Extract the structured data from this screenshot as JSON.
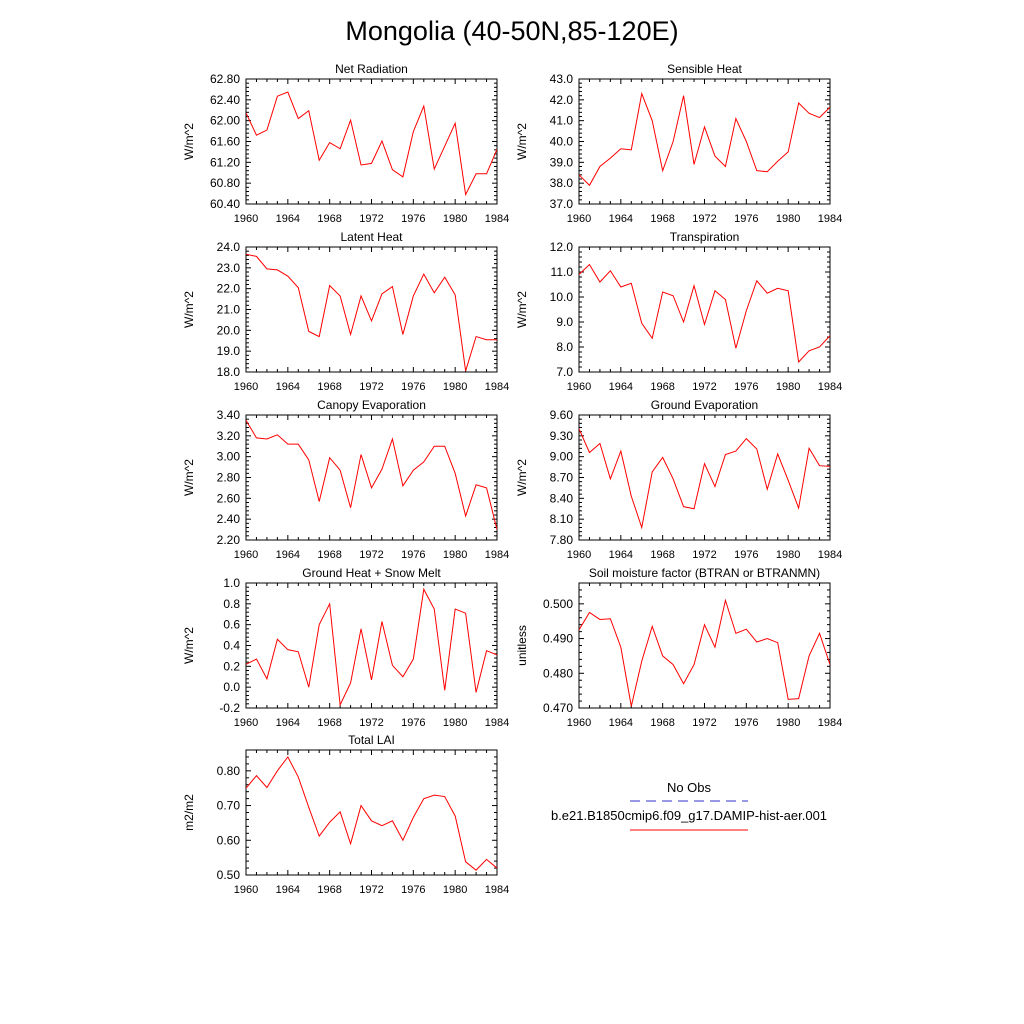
{
  "page": {
    "title": "Mongolia (40-50N,85-120E)"
  },
  "legend": {
    "obs_label": "No Obs",
    "model_label": "b.e21.B1850cmip6.f09_g17.DAMIP-hist-aer.001",
    "obs_color": "#3333cc",
    "model_color": "#ff0000"
  },
  "chart_data": [
    {
      "type": "line",
      "title": "Net Radiation",
      "ylabel": "W/m^2",
      "xlim": [
        1960,
        1984
      ],
      "xticks": [
        "1960",
        "1964",
        "1968",
        "1972",
        "1976",
        "1980",
        "1984"
      ],
      "ylim": [
        60.4,
        62.8
      ],
      "yticks": [
        "60.40",
        "60.80",
        "61.20",
        "61.60",
        "62.00",
        "62.40",
        "62.80"
      ],
      "x": [
        1960,
        1961,
        1962,
        1963,
        1964,
        1965,
        1966,
        1967,
        1968,
        1969,
        1970,
        1971,
        1972,
        1973,
        1974,
        1975,
        1976,
        1977,
        1978,
        1979,
        1980,
        1981,
        1982,
        1983,
        1984
      ],
      "series": [
        {
          "color": "#ff0000",
          "values": [
            62.15,
            61.72,
            61.82,
            62.47,
            62.55,
            62.04,
            62.19,
            61.24,
            61.58,
            61.46,
            62.01,
            61.15,
            61.18,
            61.61,
            61.06,
            60.92,
            61.79,
            62.28,
            61.07,
            61.51,
            61.95,
            60.58,
            60.98,
            60.98,
            61.45
          ]
        }
      ]
    },
    {
      "type": "line",
      "title": "Sensible Heat",
      "ylabel": "W/m^2",
      "xlim": [
        1960,
        1984
      ],
      "xticks": [
        "1960",
        "1964",
        "1968",
        "1972",
        "1976",
        "1980",
        "1984"
      ],
      "ylim": [
        37.0,
        43.0
      ],
      "yticks": [
        "37.0",
        "38.0",
        "39.0",
        "40.0",
        "41.0",
        "42.0",
        "43.0"
      ],
      "x": [
        1960,
        1961,
        1962,
        1963,
        1964,
        1965,
        1966,
        1967,
        1968,
        1969,
        1970,
        1971,
        1972,
        1973,
        1974,
        1975,
        1976,
        1977,
        1978,
        1979,
        1980,
        1981,
        1982,
        1983,
        1984
      ],
      "series": [
        {
          "color": "#ff0000",
          "values": [
            38.4,
            37.9,
            38.8,
            39.2,
            39.65,
            39.6,
            42.3,
            41.0,
            38.6,
            40.0,
            42.2,
            38.9,
            40.7,
            39.3,
            38.8,
            41.1,
            40.0,
            38.6,
            38.55,
            39.05,
            39.5,
            41.85,
            41.35,
            41.15,
            41.65
          ]
        }
      ]
    },
    {
      "type": "line",
      "title": "Latent Heat",
      "ylabel": "W/m^2",
      "xlim": [
        1960,
        1984
      ],
      "xticks": [
        "1960",
        "1964",
        "1968",
        "1972",
        "1976",
        "1980",
        "1984"
      ],
      "ylim": [
        18.0,
        24.0
      ],
      "yticks": [
        "18.0",
        "19.0",
        "20.0",
        "21.0",
        "22.0",
        "23.0",
        "24.0"
      ],
      "x": [
        1960,
        1961,
        1962,
        1963,
        1964,
        1965,
        1966,
        1967,
        1968,
        1969,
        1970,
        1971,
        1972,
        1973,
        1974,
        1975,
        1976,
        1977,
        1978,
        1979,
        1980,
        1981,
        1982,
        1983,
        1984
      ],
      "series": [
        {
          "color": "#ff0000",
          "values": [
            23.65,
            23.55,
            22.95,
            22.9,
            22.6,
            22.05,
            19.95,
            19.7,
            22.15,
            21.65,
            19.8,
            21.65,
            20.45,
            21.75,
            22.1,
            19.8,
            21.65,
            22.7,
            21.8,
            22.55,
            21.7,
            18.05,
            19.7,
            19.55,
            19.55
          ]
        }
      ]
    },
    {
      "type": "line",
      "title": "Transpiration",
      "ylabel": "W/m^2",
      "xlim": [
        1960,
        1984
      ],
      "xticks": [
        "1960",
        "1964",
        "1968",
        "1972",
        "1976",
        "1980",
        "1984"
      ],
      "ylim": [
        7.0,
        12.0
      ],
      "yticks": [
        "7.0",
        "8.0",
        "9.0",
        "10.0",
        "11.0",
        "12.0"
      ],
      "x": [
        1960,
        1961,
        1962,
        1963,
        1964,
        1965,
        1966,
        1967,
        1968,
        1969,
        1970,
        1971,
        1972,
        1973,
        1974,
        1975,
        1976,
        1977,
        1978,
        1979,
        1980,
        1981,
        1982,
        1983,
        1984
      ],
      "series": [
        {
          "color": "#ff0000",
          "values": [
            10.9,
            11.3,
            10.6,
            11.05,
            10.4,
            10.55,
            8.95,
            8.35,
            10.2,
            10.05,
            9.0,
            10.45,
            8.9,
            10.25,
            9.9,
            7.95,
            9.45,
            10.65,
            10.15,
            10.35,
            10.25,
            7.4,
            7.85,
            8.0,
            8.45
          ]
        }
      ]
    },
    {
      "type": "line",
      "title": "Canopy Evaporation",
      "ylabel": "W/m^2",
      "xlim": [
        1960,
        1984
      ],
      "xticks": [
        "1960",
        "1964",
        "1968",
        "1972",
        "1976",
        "1980",
        "1984"
      ],
      "ylim": [
        2.2,
        3.4
      ],
      "yticks": [
        "2.20",
        "2.40",
        "2.60",
        "2.80",
        "3.00",
        "3.20",
        "3.40"
      ],
      "x": [
        1960,
        1961,
        1962,
        1963,
        1964,
        1965,
        1966,
        1967,
        1968,
        1969,
        1970,
        1971,
        1972,
        1973,
        1974,
        1975,
        1976,
        1977,
        1978,
        1979,
        1980,
        1981,
        1982,
        1983,
        1984
      ],
      "series": [
        {
          "color": "#ff0000",
          "values": [
            3.35,
            3.18,
            3.17,
            3.21,
            3.12,
            3.12,
            2.97,
            2.57,
            2.99,
            2.87,
            2.51,
            3.02,
            2.7,
            2.88,
            3.17,
            2.72,
            2.87,
            2.95,
            3.1,
            3.1,
            2.84,
            2.43,
            2.73,
            2.7,
            2.3
          ]
        }
      ]
    },
    {
      "type": "line",
      "title": "Ground Evaporation",
      "ylabel": "W/m^2",
      "xlim": [
        1960,
        1984
      ],
      "xticks": [
        "1960",
        "1964",
        "1968",
        "1972",
        "1976",
        "1980",
        "1984"
      ],
      "ylim": [
        7.8,
        9.6
      ],
      "yticks": [
        "7.80",
        "8.10",
        "8.40",
        "8.70",
        "9.00",
        "9.30",
        "9.60"
      ],
      "x": [
        1960,
        1961,
        1962,
        1963,
        1964,
        1965,
        1966,
        1967,
        1968,
        1969,
        1970,
        1971,
        1972,
        1973,
        1974,
        1975,
        1976,
        1977,
        1978,
        1979,
        1980,
        1981,
        1982,
        1983,
        1984
      ],
      "series": [
        {
          "color": "#ff0000",
          "values": [
            9.4,
            9.06,
            9.19,
            8.68,
            9.08,
            8.43,
            7.98,
            8.78,
            8.99,
            8.68,
            8.28,
            8.25,
            8.9,
            8.57,
            9.03,
            9.08,
            9.26,
            9.11,
            8.53,
            9.04,
            8.66,
            8.26,
            9.12,
            8.87,
            8.86
          ]
        }
      ]
    },
    {
      "type": "line",
      "title": "Ground Heat + Snow Melt",
      "ylabel": "W/m^2",
      "xlim": [
        1960,
        1984
      ],
      "xticks": [
        "1960",
        "1964",
        "1968",
        "1972",
        "1976",
        "1980",
        "1984"
      ],
      "ylim": [
        -0.2,
        1.0
      ],
      "yticks": [
        "-0.2",
        "0.0",
        "0.2",
        "0.4",
        "0.6",
        "0.8",
        "1.0"
      ],
      "x": [
        1960,
        1961,
        1962,
        1963,
        1964,
        1965,
        1966,
        1967,
        1968,
        1969,
        1970,
        1971,
        1972,
        1973,
        1974,
        1975,
        1976,
        1977,
        1978,
        1979,
        1980,
        1981,
        1982,
        1983,
        1984
      ],
      "series": [
        {
          "color": "#ff0000",
          "values": [
            0.22,
            0.27,
            0.08,
            0.46,
            0.36,
            0.34,
            0.0,
            0.6,
            0.8,
            -0.17,
            0.04,
            0.56,
            0.07,
            0.63,
            0.21,
            0.1,
            0.27,
            0.94,
            0.75,
            -0.03,
            0.75,
            0.71,
            -0.05,
            0.35,
            0.31
          ]
        }
      ]
    },
    {
      "type": "line",
      "title": "Soil moisture factor (BTRAN or BTRANMN)",
      "ylabel": "unitless",
      "xlim": [
        1960,
        1984
      ],
      "xticks": [
        "1960",
        "1964",
        "1968",
        "1972",
        "1976",
        "1980",
        "1984"
      ],
      "ylim": [
        0.47,
        0.506
      ],
      "yticks": [
        "0.470",
        "0.480",
        "0.490",
        "0.500"
      ],
      "x": [
        1960,
        1961,
        1962,
        1963,
        1964,
        1965,
        1966,
        1967,
        1968,
        1969,
        1970,
        1971,
        1972,
        1973,
        1974,
        1975,
        1976,
        1977,
        1978,
        1979,
        1980,
        1981,
        1982,
        1983,
        1984
      ],
      "series": [
        {
          "color": "#ff0000",
          "values": [
            0.4925,
            0.4975,
            0.4955,
            0.4957,
            0.4875,
            0.4705,
            0.4835,
            0.4935,
            0.485,
            0.4825,
            0.477,
            0.4825,
            0.494,
            0.4875,
            0.501,
            0.4915,
            0.4927,
            0.489,
            0.49,
            0.4888,
            0.4725,
            0.4727,
            0.485,
            0.4915,
            0.4825
          ]
        }
      ]
    },
    {
      "type": "line",
      "title": "Total LAI",
      "ylabel": "m2/m2",
      "xlim": [
        1960,
        1984
      ],
      "xticks": [
        "1960",
        "1964",
        "1968",
        "1972",
        "1976",
        "1980",
        "1984"
      ],
      "ylim": [
        0.5,
        0.86
      ],
      "yticks": [
        "0.50",
        "0.60",
        "0.70",
        "0.80"
      ],
      "x": [
        1960,
        1961,
        1962,
        1963,
        1964,
        1965,
        1966,
        1967,
        1968,
        1969,
        1970,
        1971,
        1972,
        1973,
        1974,
        1975,
        1976,
        1977,
        1978,
        1979,
        1980,
        1981,
        1982,
        1983,
        1984
      ],
      "series": [
        {
          "color": "#ff0000",
          "values": [
            0.75,
            0.786,
            0.752,
            0.8,
            0.84,
            0.782,
            0.695,
            0.612,
            0.652,
            0.682,
            0.59,
            0.7,
            0.656,
            0.642,
            0.656,
            0.6,
            0.666,
            0.72,
            0.73,
            0.726,
            0.67,
            0.538,
            0.514,
            0.545,
            0.52
          ]
        }
      ]
    }
  ]
}
